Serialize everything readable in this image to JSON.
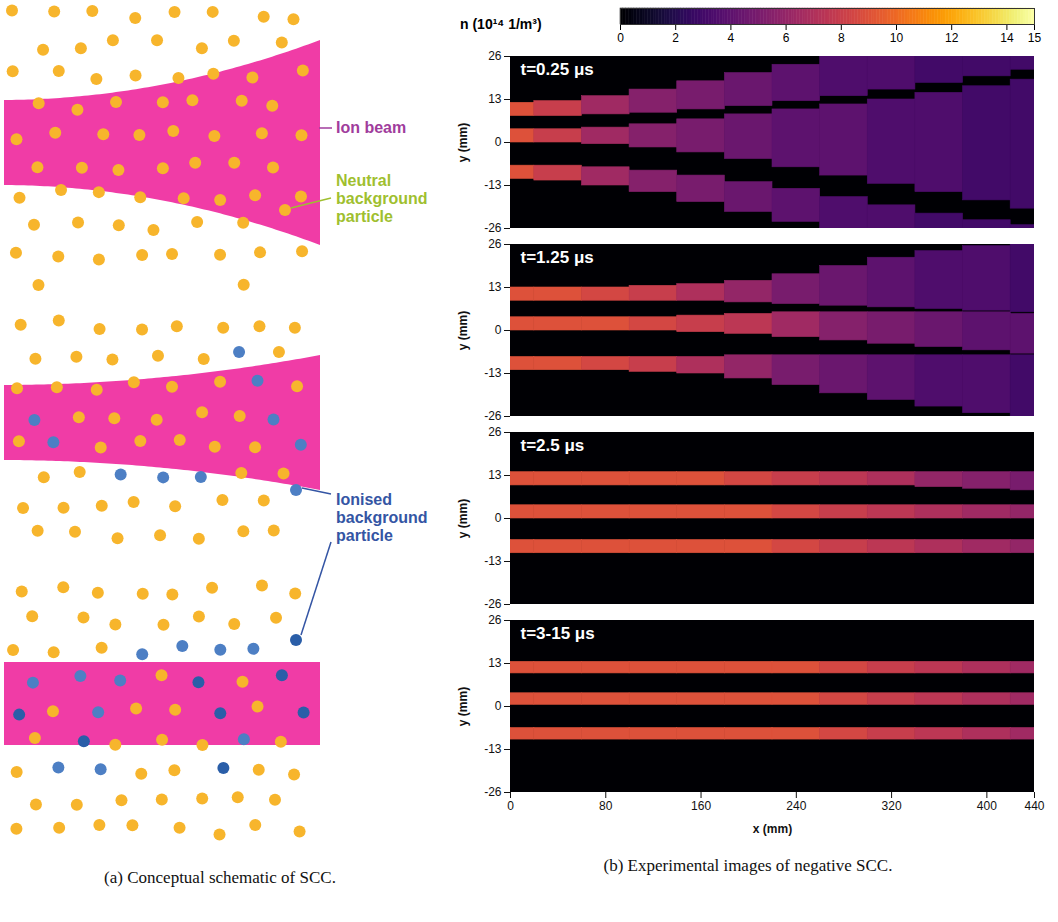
{
  "schematic": {
    "caption": "(a) Conceptual schematic of SCC.",
    "labels": {
      "ion_beam": "Ion beam",
      "neutral": "Neutral background particle",
      "ionised": "Ionised background particle"
    }
  },
  "chart_data": {
    "type": "heatmap",
    "caption": "(b) Experimental images of negative SCC.",
    "x_label": "x (mm)",
    "y_label": "y (mm)",
    "xlim": [
      0,
      440
    ],
    "xticks": [
      0,
      80,
      160,
      240,
      320,
      400,
      440
    ],
    "ylim": [
      -26,
      26
    ],
    "yticks": [
      -26,
      -13,
      0,
      13,
      26
    ],
    "colorbar": {
      "label": "n (10¹⁴ 1/m³)",
      "range": [
        0,
        15
      ],
      "ticks": [
        0,
        2,
        4,
        6,
        8,
        10,
        12,
        14,
        15
      ]
    },
    "panels": [
      {
        "title": "t=0.25 μs",
        "regions": [
          {
            "x": [
              0,
              40,
              80,
              120,
              160,
              200,
              240,
              280,
              320,
              360,
              400,
              440
            ],
            "y_low": [
              8,
              8,
              8.5,
              9,
              10,
              11,
              12.5,
              14,
              16,
              18,
              20,
              22
            ],
            "y_high": [
              12,
              12.5,
              14,
              16,
              18.5,
              21,
              23.5,
              26,
              26,
              26,
              26,
              26
            ],
            "n": [
              9,
              8,
              6.5,
              5.5,
              5,
              4.5,
              4,
              3.5,
              3.5,
              3,
              3,
              3
            ]
          },
          {
            "x": [
              0,
              40,
              80,
              120,
              160,
              200,
              240,
              280,
              320,
              360,
              400,
              440
            ],
            "y_low": [
              0,
              0,
              -0.5,
              -1.5,
              -3,
              -5,
              -7.5,
              -10,
              -12.5,
              -15,
              -17.5,
              -20
            ],
            "y_high": [
              4,
              4,
              4.5,
              5.5,
              7,
              8.5,
              10,
              11.5,
              13,
              15,
              17,
              19
            ],
            "n": [
              9,
              8,
              6.5,
              5.5,
              5,
              4.5,
              4,
              4,
              3.5,
              3.5,
              3,
              3
            ]
          },
          {
            "x": [
              0,
              40,
              80,
              120,
              160,
              200,
              240,
              280,
              320,
              360,
              400,
              440
            ],
            "y_low": [
              -11,
              -11.5,
              -13,
              -15,
              -18,
              -21,
              -24,
              -26,
              -26,
              -26,
              -26,
              -26
            ],
            "y_high": [
              -7,
              -7,
              -7.5,
              -8.5,
              -10,
              -12,
              -14,
              -16.5,
              -19,
              -21.5,
              -23.5,
              -25
            ],
            "n": [
              9,
              8,
              6.5,
              5.5,
              5,
              4.5,
              4,
              3.5,
              3.5,
              3,
              3,
              3
            ]
          }
        ]
      },
      {
        "title": "t=1.25 μs",
        "regions": [
          {
            "x": [
              0,
              40,
              80,
              120,
              160,
              200,
              240,
              280,
              320,
              360,
              400,
              440
            ],
            "y_low": [
              9,
              9,
              9,
              9,
              9,
              8.5,
              8,
              7.5,
              7,
              6.5,
              6,
              5.5
            ],
            "y_high": [
              13,
              13,
              13,
              13.5,
              14,
              15,
              17,
              19.5,
              22,
              24,
              25.5,
              26
            ],
            "n": [
              9,
              9,
              8.5,
              8,
              7,
              6,
              5,
              4.5,
              4,
              3.5,
              3.5,
              3
            ]
          },
          {
            "x": [
              0,
              40,
              80,
              120,
              160,
              200,
              240,
              280,
              320,
              360,
              400,
              440
            ],
            "y_low": [
              0,
              0,
              0,
              0,
              -0.5,
              -1,
              -2,
              -3,
              -4,
              -5,
              -6,
              -7
            ],
            "y_high": [
              4,
              4,
              4,
              4,
              4.5,
              5,
              5.5,
              5.5,
              5.5,
              5.5,
              5.5,
              5
            ],
            "n": [
              9,
              9,
              9,
              8.5,
              8,
              7.5,
              6.5,
              5.5,
              5,
              4.5,
              4,
              4
            ]
          },
          {
            "x": [
              0,
              40,
              80,
              120,
              160,
              200,
              240,
              280,
              320,
              360,
              400,
              440
            ],
            "y_low": [
              -12,
              -12,
              -12,
              -12.5,
              -13,
              -14.5,
              -16.5,
              -19,
              -21,
              -23,
              -25,
              -26
            ],
            "y_high": [
              -8,
              -8,
              -8,
              -8,
              -8,
              -7.5,
              -7.5,
              -7.5,
              -7.5,
              -7.5,
              -7.5,
              -7.5
            ],
            "n": [
              9,
              9,
              8.5,
              8,
              7,
              6,
              5,
              4.5,
              4,
              3.5,
              3.5,
              3
            ]
          }
        ]
      },
      {
        "title": "t=2.5 μs",
        "regions": [
          {
            "x": [
              0,
              40,
              80,
              120,
              160,
              200,
              240,
              280,
              320,
              360,
              400,
              440
            ],
            "y_low": [
              10,
              10,
              10,
              10,
              10,
              10,
              10,
              10,
              10,
              9.5,
              9,
              8.5
            ],
            "y_high": [
              14,
              14,
              14,
              14,
              14,
              14,
              14,
              14,
              14,
              14,
              14,
              14
            ],
            "n": [
              9,
              9,
              9,
              9,
              9,
              8.5,
              8,
              7.5,
              7,
              6,
              5.5,
              5
            ]
          },
          {
            "x": [
              0,
              40,
              80,
              120,
              160,
              200,
              240,
              280,
              320,
              360,
              400,
              440
            ],
            "y_low": [
              0,
              0,
              0,
              0,
              0,
              0,
              0,
              0,
              0,
              0,
              0,
              0
            ],
            "y_high": [
              4,
              4,
              4,
              4,
              4,
              4,
              4,
              4,
              4,
              4,
              4,
              4
            ],
            "n": [
              9,
              9,
              9,
              9,
              9,
              9,
              8.5,
              8,
              7.5,
              7,
              6.5,
              6
            ]
          },
          {
            "x": [
              0,
              40,
              80,
              120,
              160,
              200,
              240,
              280,
              320,
              360,
              400,
              440
            ],
            "y_low": [
              -10.5,
              -10.5,
              -10.5,
              -10.5,
              -10.5,
              -10.5,
              -10.5,
              -10.5,
              -10.5,
              -10.5,
              -10.5,
              -10.5
            ],
            "y_high": [
              -6.5,
              -6.5,
              -6.5,
              -6.5,
              -6.5,
              -6.5,
              -6.5,
              -6.5,
              -6.5,
              -6.5,
              -6.5,
              -6.5
            ],
            "n": [
              9,
              9,
              9,
              9,
              9,
              9,
              8.5,
              8,
              7.5,
              7,
              6.5,
              6
            ]
          }
        ]
      },
      {
        "title": "t=3-15 μs",
        "regions": [
          {
            "x": [
              0,
              40,
              80,
              120,
              160,
              200,
              240,
              280,
              320,
              360,
              400,
              440
            ],
            "y_low": [
              10,
              10,
              10,
              10,
              10,
              10,
              10,
              10,
              10,
              10,
              10,
              10
            ],
            "y_high": [
              13.5,
              13.5,
              13.5,
              13.5,
              13.5,
              13.5,
              13.5,
              13.5,
              13.5,
              13.5,
              13.5,
              13.5
            ],
            "n": [
              9,
              9,
              9,
              9,
              9,
              9,
              9,
              8.5,
              8,
              7.5,
              7,
              6.5
            ]
          },
          {
            "x": [
              0,
              40,
              80,
              120,
              160,
              200,
              240,
              280,
              320,
              360,
              400,
              440
            ],
            "y_low": [
              0.5,
              0.5,
              0.5,
              0.5,
              0.5,
              0.5,
              0.5,
              0.5,
              0.5,
              0.5,
              0.5,
              0.5
            ],
            "y_high": [
              4,
              4,
              4,
              4,
              4,
              4,
              4,
              4,
              4,
              4,
              4,
              4
            ],
            "n": [
              9,
              9,
              9,
              9,
              9,
              9,
              9,
              8.5,
              8,
              7.5,
              7,
              6.5
            ]
          },
          {
            "x": [
              0,
              40,
              80,
              120,
              160,
              200,
              240,
              280,
              320,
              360,
              400,
              440
            ],
            "y_low": [
              -10,
              -10,
              -10,
              -10,
              -10,
              -10,
              -10,
              -10,
              -10,
              -10,
              -10,
              -10
            ],
            "y_high": [
              -6.5,
              -6.5,
              -6.5,
              -6.5,
              -6.5,
              -6.5,
              -6.5,
              -6.5,
              -6.5,
              -6.5,
              -6.5,
              -6.5
            ],
            "n": [
              9,
              9,
              9,
              9,
              9,
              9,
              9,
              8.5,
              8,
              7.5,
              7,
              6.5
            ]
          }
        ]
      }
    ]
  }
}
